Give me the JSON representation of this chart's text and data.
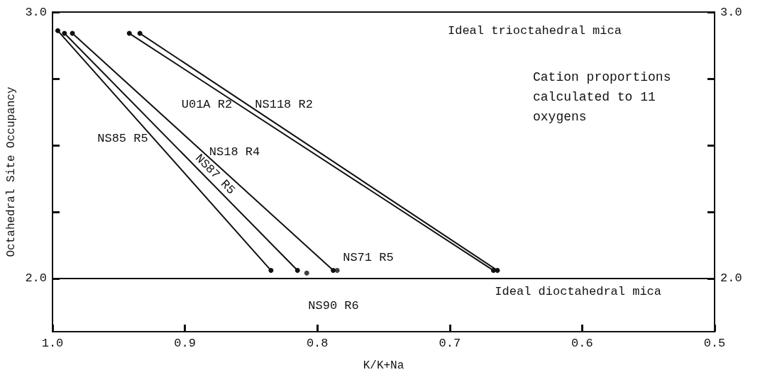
{
  "chart_data": {
    "type": "line",
    "xlabel": "K/K+Na",
    "ylabel": "Octahedral Site Occupancy",
    "xlim": [
      1.0,
      0.5
    ],
    "xticks": [
      {
        "value": 1.0,
        "label": "1.0"
      },
      0.9,
      0.8,
      0.7,
      0.6,
      0.5
    ],
    "ylim": [
      1.8,
      3.0
    ],
    "yticks": [
      {
        "value": 2.0,
        "label": "2.0"
      },
      {
        "value": 2.25,
        "label": null
      },
      {
        "value": 2.5,
        "label": null
      },
      {
        "value": 2.75,
        "label": null
      },
      {
        "value": 3.0,
        "label": "3.0"
      }
    ],
    "y2lim": [
      1.8,
      3.0
    ],
    "y2ticks": [
      {
        "value": 2.0,
        "label": "2.0"
      },
      {
        "value": 2.25,
        "label": null
      },
      {
        "value": 2.5,
        "label": null
      },
      {
        "value": 2.75,
        "label": null
      },
      {
        "value": 3.0,
        "label": "3.0"
      }
    ],
    "series": [
      {
        "name": "NS85 R5",
        "color": "#111111",
        "x": [
          0.996,
          0.835
        ],
        "values": [
          2.93,
          2.03
        ]
      },
      {
        "name": "NS87 R5",
        "color": "#111111",
        "x": [
          0.991,
          0.815
        ],
        "values": [
          2.92,
          2.03
        ]
      },
      {
        "name": "NS18 R4",
        "color": "#111111",
        "x": [
          0.985,
          0.788
        ],
        "values": [
          2.92,
          2.03
        ]
      },
      {
        "name": "U01A R2",
        "color": "#111111",
        "x": [
          0.942,
          0.667
        ],
        "values": [
          2.92,
          2.03
        ]
      },
      {
        "name": "NS118 R2",
        "color": "#111111",
        "x": [
          0.934,
          0.664
        ],
        "values": [
          2.92,
          2.03
        ]
      },
      {
        "name": "NS90 R6",
        "type": "scatter",
        "color": "#111111",
        "x": [
          0.808
        ],
        "values": [
          2.02
        ]
      },
      {
        "name": "NS71 R5",
        "type": "scatter",
        "color": "#111111",
        "x": [
          0.785
        ],
        "values": [
          2.03
        ]
      }
    ],
    "ref_lines": [
      {
        "axis": "y",
        "value": 2.0,
        "label": "Ideal dioctahedral mica",
        "color": "#111111"
      }
    ],
    "annotations": [
      "Ideal trioctahedral mica",
      "Cation proportions calculated to 11 oxygens"
    ],
    "marker": "circle",
    "line_style": "solid",
    "grid": false,
    "legend": false
  }
}
